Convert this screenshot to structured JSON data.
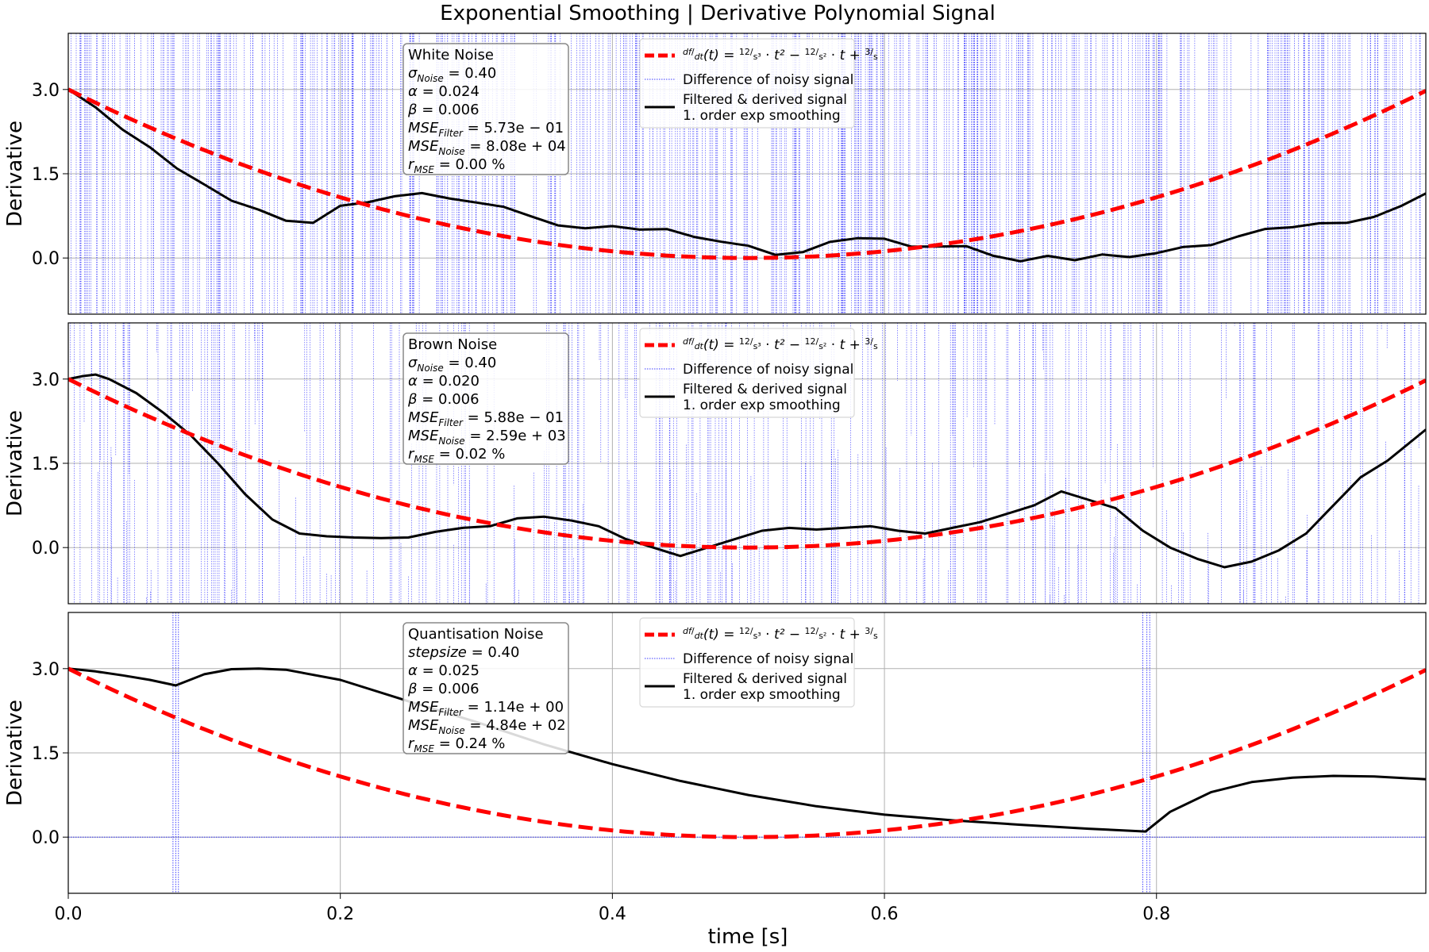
{
  "title": "Exponential Smoothing | Derivative Polynomial Signal",
  "xlabel": "time [s]",
  "ylabel": "Derivative",
  "x_ticks": [
    0.0,
    0.2,
    0.4,
    0.6,
    0.8
  ],
  "x_tick_labels": [
    "0.0",
    "0.2",
    "0.4",
    "0.6",
    "0.8"
  ],
  "y_ticks": [
    0.0,
    1.5,
    3.0
  ],
  "y_tick_labels": [
    "0.0",
    "1.5",
    "3.0"
  ],
  "colors": {
    "ideal": "#ff0000",
    "noise": "#0000ff",
    "filtered": "#000000",
    "grid": "#b0b0b0"
  },
  "legend": {
    "ideal_label": "df/dt(t) = 12/s³ · t² − 12/s² · t + 3/s",
    "noise_label": "Difference of noisy signal",
    "filtered_label_1": "Filtered & derived signal",
    "filtered_label_2": "1. order exp smoothing"
  },
  "chart_data": [
    {
      "type": "line",
      "panel": "white",
      "xlim": [
        0,
        0.998
      ],
      "ylim": [
        -1.0,
        4.0
      ],
      "grid": true,
      "legend_position": "top-center",
      "info": {
        "name": "White Noise",
        "param_sym": "σ",
        "param_sub": "Noise",
        "param_val": " = 0.40",
        "alpha": " = 0.024",
        "beta": " = 0.006",
        "mse_filter": " = 5.73e − 01",
        "mse_noise": " = 8.08e + 04",
        "r_mse": " = 0.00 %"
      },
      "series": [
        {
          "name": "df/dt(t) = 12/s³ · t² − 12/s² · t + 3/s",
          "role": "ideal",
          "formula": "12*t^2 - 12*t + 3"
        },
        {
          "name": "Difference of noisy signal",
          "role": "noise",
          "density": "dense"
        },
        {
          "name": "Filtered & derived signal 1. order exp smoothing",
          "role": "filtered",
          "x": [
            0.0,
            0.02,
            0.04,
            0.06,
            0.08,
            0.1,
            0.12,
            0.14,
            0.16,
            0.18,
            0.2,
            0.22,
            0.24,
            0.26,
            0.28,
            0.3,
            0.32,
            0.34,
            0.36,
            0.38,
            0.4,
            0.42,
            0.44,
            0.46,
            0.48,
            0.5,
            0.52,
            0.54,
            0.56,
            0.58,
            0.6,
            0.62,
            0.64,
            0.66,
            0.68,
            0.7,
            0.72,
            0.74,
            0.76,
            0.78,
            0.8,
            0.82,
            0.84,
            0.86,
            0.88,
            0.9,
            0.92,
            0.94,
            0.96,
            0.98,
            0.998
          ],
          "y": [
            3.0,
            2.65,
            2.25,
            1.95,
            1.62,
            1.3,
            1.05,
            0.82,
            0.7,
            0.62,
            0.92,
            0.95,
            1.1,
            1.12,
            1.05,
            0.95,
            0.88,
            0.75,
            0.62,
            0.55,
            0.55,
            0.52,
            0.48,
            0.38,
            0.32,
            0.2,
            0.08,
            0.12,
            0.25,
            0.35,
            0.32,
            0.18,
            0.18,
            0.2,
            0.05,
            -0.02,
            0.02,
            0.0,
            0.1,
            0.05,
            0.08,
            0.18,
            0.25,
            0.38,
            0.52,
            0.58,
            0.62,
            0.65,
            0.72,
            0.9,
            1.15
          ]
        }
      ]
    },
    {
      "type": "line",
      "panel": "brown",
      "xlim": [
        0,
        0.998
      ],
      "ylim": [
        -1.0,
        4.0
      ],
      "grid": true,
      "legend_position": "top-center",
      "info": {
        "name": "Brown Noise",
        "param_sym": "σ",
        "param_sub": "Noise",
        "param_val": " = 0.40",
        "alpha": " = 0.020",
        "beta": " = 0.006",
        "mse_filter": " = 5.88e − 01",
        "mse_noise": " = 2.59e + 03",
        "r_mse": " = 0.02 %"
      },
      "series": [
        {
          "name": "df/dt(t) = 12/s³ · t² − 12/s² · t + 3/s",
          "role": "ideal",
          "formula": "12*t^2 - 12*t + 3"
        },
        {
          "name": "Difference of noisy signal",
          "role": "noise",
          "density": "medium"
        },
        {
          "name": "Filtered & derived signal 1. order exp smoothing",
          "role": "filtered",
          "x": [
            0.0,
            0.01,
            0.02,
            0.03,
            0.05,
            0.07,
            0.09,
            0.11,
            0.13,
            0.15,
            0.17,
            0.19,
            0.21,
            0.23,
            0.25,
            0.27,
            0.29,
            0.31,
            0.33,
            0.35,
            0.37,
            0.39,
            0.41,
            0.43,
            0.45,
            0.47,
            0.49,
            0.51,
            0.53,
            0.55,
            0.57,
            0.59,
            0.61,
            0.63,
            0.65,
            0.67,
            0.69,
            0.71,
            0.73,
            0.75,
            0.77,
            0.79,
            0.81,
            0.83,
            0.85,
            0.87,
            0.89,
            0.91,
            0.93,
            0.95,
            0.97,
            0.998
          ],
          "y": [
            3.0,
            3.05,
            3.08,
            3.0,
            2.75,
            2.4,
            2.0,
            1.5,
            0.95,
            0.5,
            0.25,
            0.2,
            0.18,
            0.17,
            0.18,
            0.28,
            0.35,
            0.38,
            0.52,
            0.55,
            0.48,
            0.38,
            0.15,
            0.0,
            -0.15,
            0.0,
            0.15,
            0.3,
            0.35,
            0.32,
            0.35,
            0.38,
            0.3,
            0.25,
            0.35,
            0.45,
            0.6,
            0.75,
            1.0,
            0.85,
            0.7,
            0.3,
            0.0,
            -0.2,
            -0.35,
            -0.25,
            -0.05,
            0.25,
            0.75,
            1.25,
            1.55,
            2.1
          ]
        }
      ]
    },
    {
      "type": "line",
      "panel": "quantisation",
      "xlim": [
        0,
        0.998
      ],
      "ylim": [
        -1.0,
        4.0
      ],
      "grid": true,
      "legend_position": "top-center",
      "info": {
        "name": "Quantisation Noise",
        "param_sym": "stepsize",
        "param_sub": "",
        "param_val": " = 0.40",
        "alpha": " = 0.025",
        "beta": " = 0.006",
        "mse_filter": " = 1.14e + 00",
        "mse_noise": " = 4.84e + 02",
        "r_mse": " = 0.24 %"
      },
      "series": [
        {
          "name": "df/dt(t) = 12/s³ · t² − 12/s² · t + 3/s",
          "role": "ideal",
          "formula": "12*t^2 - 12*t + 3"
        },
        {
          "name": "Difference of noisy signal",
          "role": "noise",
          "spikes_x": [
            0.077,
            0.079,
            0.081,
            0.79,
            0.793,
            0.795,
            0.998
          ]
        },
        {
          "name": "Filtered & derived signal 1. order exp smoothing",
          "role": "filtered",
          "x": [
            0.0,
            0.02,
            0.04,
            0.06,
            0.079,
            0.1,
            0.12,
            0.14,
            0.16,
            0.2,
            0.25,
            0.3,
            0.35,
            0.4,
            0.45,
            0.5,
            0.55,
            0.6,
            0.65,
            0.7,
            0.75,
            0.792,
            0.81,
            0.84,
            0.87,
            0.9,
            0.93,
            0.96,
            0.998
          ],
          "y": [
            3.0,
            2.95,
            2.88,
            2.8,
            2.7,
            2.9,
            2.99,
            3.0,
            2.98,
            2.8,
            2.42,
            2.05,
            1.65,
            1.3,
            1.0,
            0.75,
            0.55,
            0.4,
            0.3,
            0.22,
            0.15,
            0.1,
            0.45,
            0.8,
            0.98,
            1.06,
            1.09,
            1.08,
            1.03
          ]
        }
      ]
    }
  ]
}
